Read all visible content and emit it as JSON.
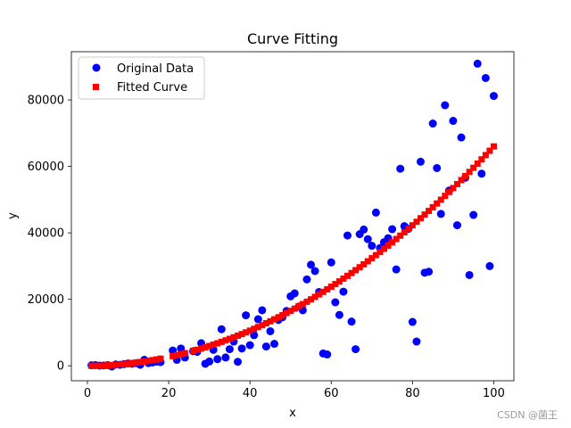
{
  "chart_data": {
    "type": "scatter",
    "title": "Curve Fitting",
    "xlabel": "x",
    "ylabel": "y",
    "xlim": [
      -3.95,
      104.95
    ],
    "ylim": [
      -4500,
      94500
    ],
    "xticks": [
      0,
      20,
      40,
      60,
      80,
      100
    ],
    "yticks": [
      0,
      20000,
      40000,
      60000,
      80000
    ],
    "xtick_labels": [
      "0",
      "20",
      "40",
      "60",
      "80",
      "100"
    ],
    "ytick_labels": [
      "0",
      "20000",
      "40000",
      "60000",
      "80000"
    ],
    "grid": false,
    "legend_position": "upper-left",
    "series": [
      {
        "name": "Original Data",
        "marker": "circle",
        "color": "#0000ff",
        "x": [
          1,
          2,
          3,
          4,
          5,
          6,
          7,
          8,
          9,
          10,
          11,
          12,
          13,
          14,
          15,
          16,
          17,
          18,
          21,
          22,
          23,
          24,
          26,
          27,
          28,
          29,
          30,
          31,
          32,
          33,
          34,
          35,
          36,
          37,
          38,
          39,
          40,
          41,
          42,
          43,
          44,
          45,
          46,
          47,
          48,
          49,
          50,
          51,
          52,
          53,
          54,
          55,
          56,
          57,
          58,
          59,
          60,
          61,
          62,
          63,
          64,
          65,
          66,
          67,
          68,
          69,
          70,
          71,
          72,
          73,
          74,
          75,
          76,
          77,
          78,
          79,
          80,
          81,
          82,
          83,
          84,
          85,
          86,
          87,
          88,
          89,
          90,
          91,
          92,
          93,
          94,
          95,
          96,
          97,
          98,
          99,
          100
        ],
        "y": [
          150,
          200,
          50,
          100,
          200,
          -200,
          400,
          300,
          500,
          700,
          600,
          800,
          300,
          1800,
          800,
          1000,
          1200,
          1100,
          4600,
          1800,
          5200,
          2500,
          4400,
          4200,
          6800,
          600,
          1300,
          4800,
          2000,
          11000,
          2500,
          5000,
          7300,
          1200,
          5200,
          15200,
          6200,
          9200,
          14000,
          16700,
          5800,
          10400,
          6600,
          13800,
          14600,
          16500,
          20900,
          21800,
          17800,
          16700,
          26000,
          30400,
          28500,
          22200,
          3700,
          3400,
          31100,
          19100,
          15300,
          22300,
          39200,
          13300,
          5000,
          39600,
          41000,
          38100,
          36100,
          46100,
          35400,
          37200,
          38400,
          41100,
          29000,
          59300,
          42000,
          41200,
          13200,
          7300,
          61400,
          28000,
          28300,
          72900,
          59500,
          45700,
          78400,
          52700,
          73700,
          42300,
          68700,
          56600,
          27300,
          45400,
          90900,
          57800,
          86600,
          30000,
          81200
        ]
      },
      {
        "name": "Fitted Curve",
        "marker": "square",
        "color": "#ff0000",
        "x": [
          1,
          2,
          3,
          4,
          5,
          6,
          7,
          8,
          9,
          10,
          11,
          12,
          13,
          14,
          15,
          16,
          17,
          18,
          21,
          22,
          23,
          24,
          26,
          27,
          28,
          29,
          30,
          31,
          32,
          33,
          34,
          35,
          36,
          37,
          38,
          39,
          40,
          41,
          42,
          43,
          44,
          45,
          46,
          47,
          48,
          49,
          50,
          51,
          52,
          53,
          54,
          55,
          56,
          57,
          58,
          59,
          60,
          61,
          62,
          63,
          64,
          65,
          66,
          67,
          68,
          69,
          70,
          71,
          72,
          73,
          74,
          75,
          76,
          77,
          78,
          79,
          80,
          81,
          82,
          83,
          84,
          85,
          86,
          87,
          88,
          89,
          90,
          91,
          92,
          93,
          94,
          95,
          96,
          97,
          98,
          99,
          100
        ],
        "y": [
          7,
          26,
          59,
          106,
          165,
          238,
          324,
          423,
          535,
          661,
          800,
          952,
          1117,
          1296,
          1487,
          1692,
          1910,
          2142,
          2917,
          3200,
          3498,
          3809,
          4470,
          4821,
          5185,
          5562,
          5952,
          6356,
          6772,
          7202,
          7645,
          8101,
          8570,
          9053,
          9548,
          10057,
          10579,
          11114,
          11663,
          12224,
          12799,
          13387,
          13988,
          14602,
          15230,
          15870,
          16524,
          17191,
          17871,
          18564,
          19271,
          19990,
          20723,
          21469,
          22228,
          23000,
          23786,
          24584,
          25396,
          26221,
          27059,
          27911,
          28775,
          29653,
          30544,
          31448,
          32365,
          33295,
          34239,
          35195,
          36165,
          37148,
          38144,
          39154,
          40176,
          41212,
          42261,
          43323,
          44398,
          45487,
          46588,
          47703,
          48831,
          49972,
          51126,
          52294,
          53474,
          54668,
          55875,
          57095,
          58328,
          59575,
          60834,
          62107,
          63393,
          64692,
          66004
        ]
      }
    ],
    "watermark": "CSDN @菌王"
  }
}
